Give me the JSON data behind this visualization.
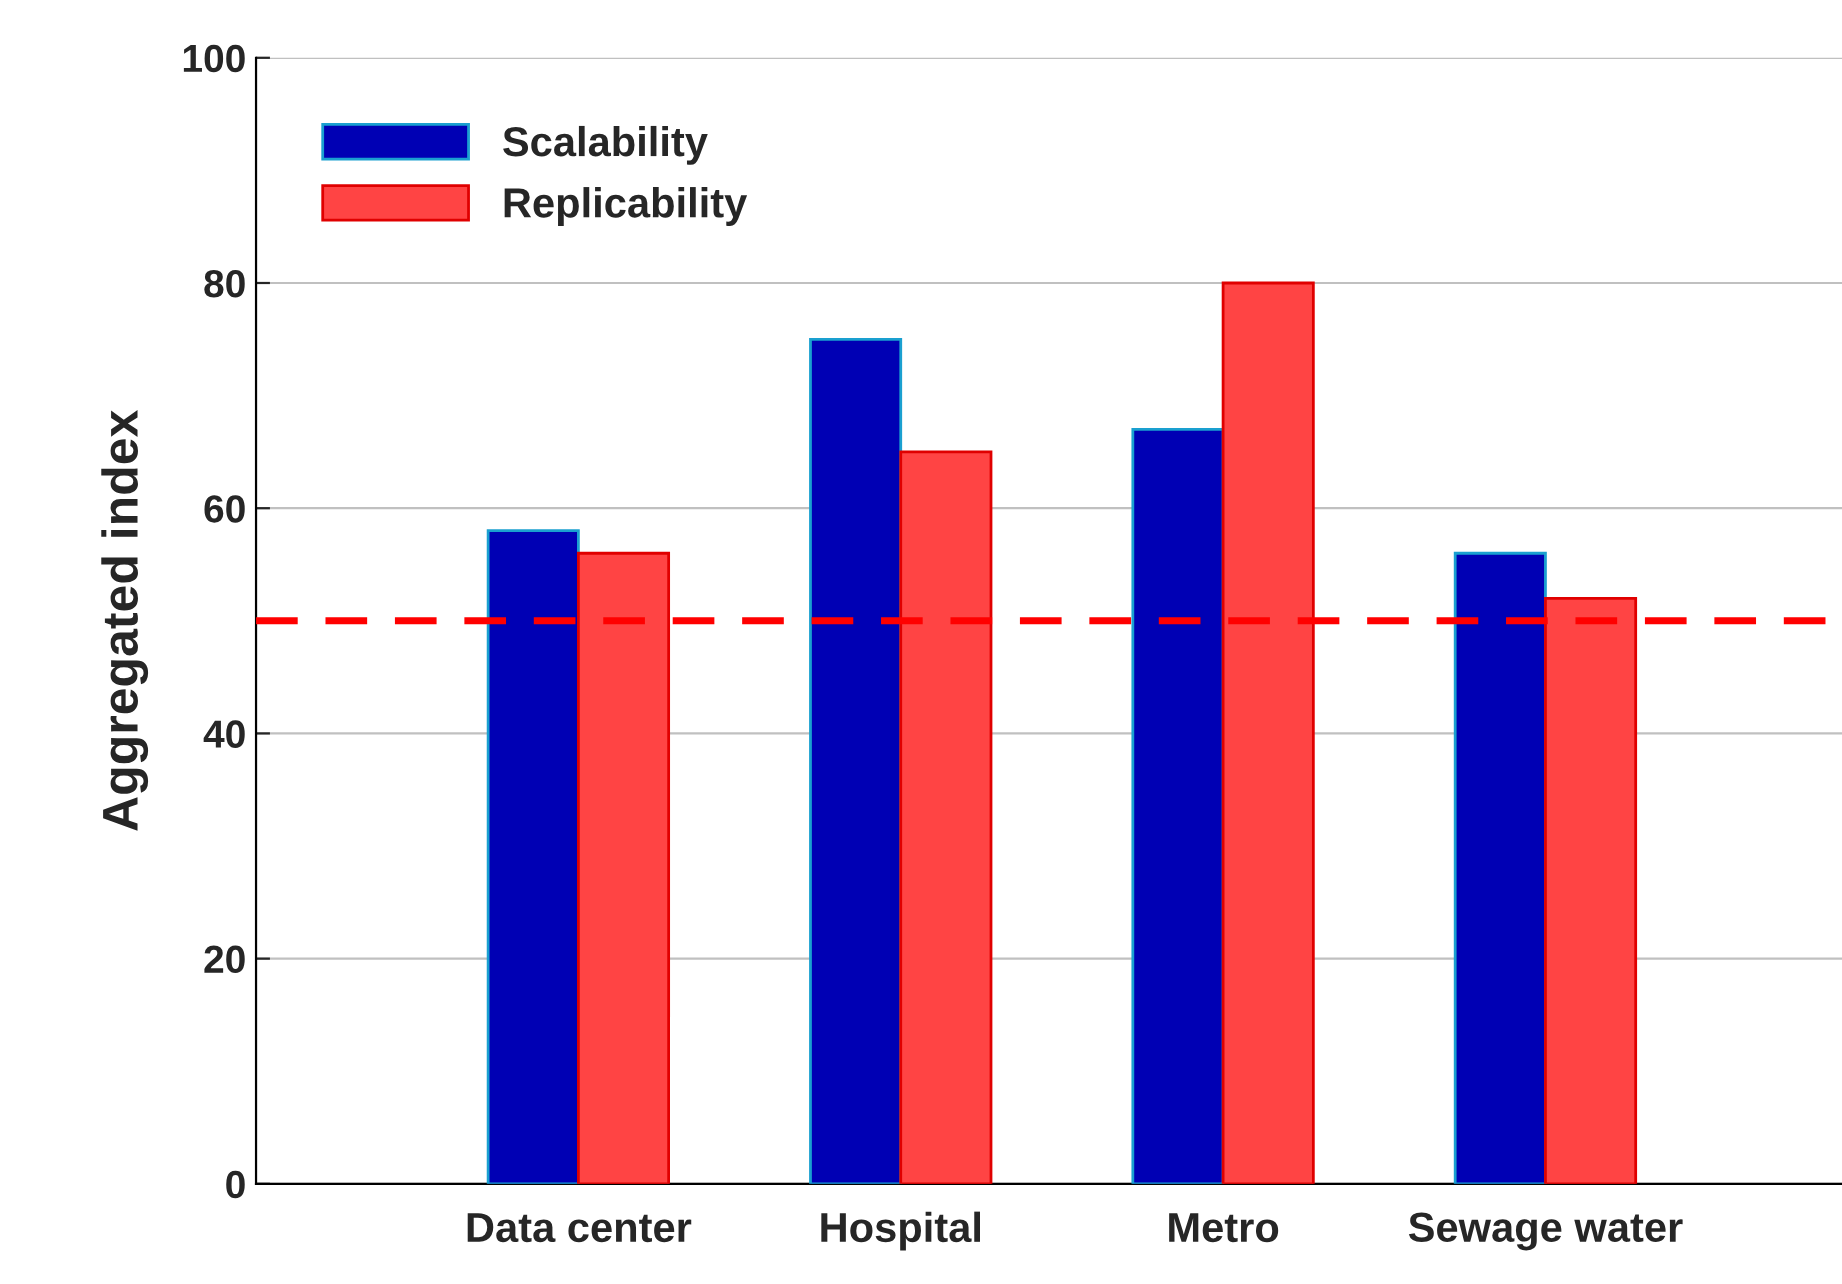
{
  "chart_data": {
    "type": "bar",
    "ylabel": "Aggregated index",
    "categories": [
      "Data center",
      "Hospital",
      "Metro",
      "Sewage water"
    ],
    "series": [
      {
        "name": "Scalability",
        "color": "#0000b4",
        "values": [
          58,
          75,
          67,
          56
        ]
      },
      {
        "name": "Replicability",
        "color": "#ff4444",
        "values": [
          56,
          65,
          80,
          52
        ]
      }
    ],
    "ylim": [
      0,
      100
    ],
    "yticks": [
      0,
      20,
      40,
      60,
      80,
      100
    ],
    "grid": "y",
    "legend": "top left",
    "ref_lines": [
      {
        "axis": "y",
        "value": 50,
        "color": "#ff0000",
        "line_style": "dashed"
      }
    ]
  }
}
